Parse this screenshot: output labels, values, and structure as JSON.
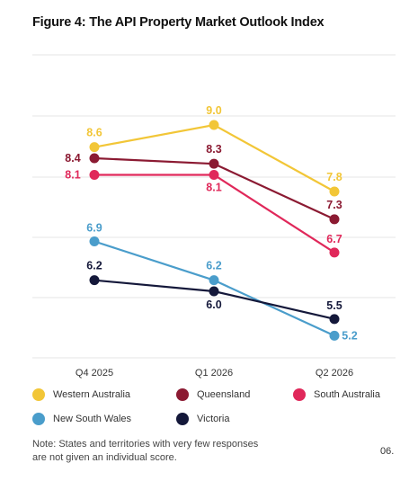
{
  "title": "Figure 4: The API Property Market Outlook Index",
  "note": "Note: States and territories with very few responses are not given an individual score.",
  "page_number": "06.",
  "chart_data": {
    "type": "line",
    "title": "Figure 4: The API Property Market Outlook Index",
    "x": [
      "Q4 2025",
      "Q1 2026",
      "Q2 2026"
    ],
    "ylim": [
      4.8,
      9.6
    ],
    "grid": true,
    "legend_position": "bottom",
    "series": [
      {
        "name": "Western Australia",
        "color": "#F2C637",
        "values": [
          8.6,
          9.0,
          7.8
        ],
        "labels": [
          "8.6",
          "9.0",
          "7.8"
        ]
      },
      {
        "name": "Queensland",
        "color": "#8B1A32",
        "values": [
          8.4,
          8.3,
          7.3
        ],
        "labels": [
          "8.4",
          "8.3",
          "7.3"
        ]
      },
      {
        "name": "South Australia",
        "color": "#E0285A",
        "values": [
          8.1,
          8.1,
          6.7
        ],
        "labels": [
          "8.1",
          "8.1",
          "6.7"
        ]
      },
      {
        "name": "New South Wales",
        "color": "#4A9DCB",
        "values": [
          6.9,
          6.2,
          5.2
        ],
        "labels": [
          "6.9",
          "6.2",
          "5.2"
        ]
      },
      {
        "name": "Victoria",
        "color": "#14183A",
        "values": [
          6.2,
          6.0,
          5.5
        ],
        "labels": [
          "6.2",
          "6.0",
          "5.5"
        ]
      }
    ]
  }
}
